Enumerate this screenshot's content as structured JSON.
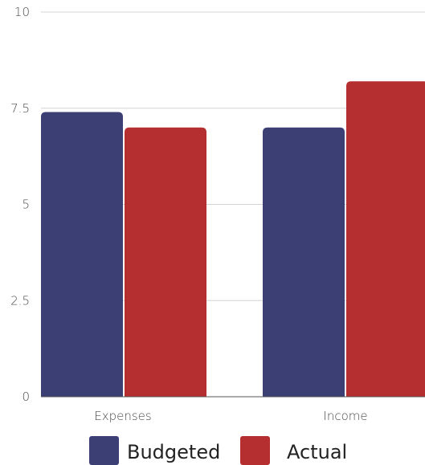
{
  "chart_data": {
    "type": "bar",
    "categories": [
      "Expenses",
      "Income"
    ],
    "series": [
      {
        "name": "Budgeted",
        "values": [
          7.4,
          7.0
        ],
        "color": "#3b3f74"
      },
      {
        "name": "Actual",
        "values": [
          7.0,
          8.2
        ],
        "color": "#b52e30"
      }
    ],
    "title": "",
    "xlabel": "",
    "ylabel": "",
    "ylim": [
      0,
      10
    ],
    "y_ticks": [
      "0",
      "2.5",
      "5",
      "7.5",
      "10"
    ],
    "grid": true,
    "legend_position": "bottom"
  }
}
